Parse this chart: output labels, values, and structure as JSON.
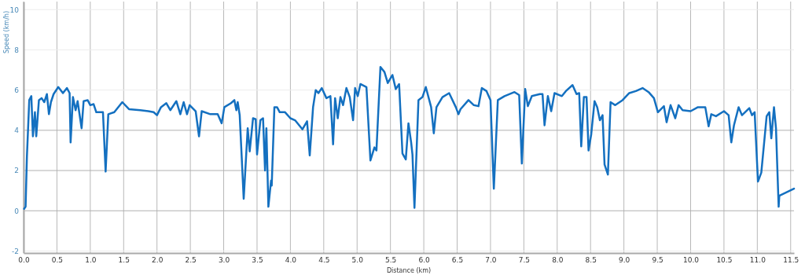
{
  "chart_data": {
    "type": "line",
    "xlabel": "Distance (km)",
    "ylabel": "Speed (km/h)",
    "xlim": [
      0,
      11.55
    ],
    "ylim": [
      -2.1,
      10.4
    ],
    "xticks": [
      {
        "value": 0,
        "label": "0.0"
      },
      {
        "value": 0.5,
        "label": "0.5"
      },
      {
        "value": 1,
        "label": "1.0"
      },
      {
        "value": 1.5,
        "label": "1.5"
      },
      {
        "value": 2,
        "label": "2.0"
      },
      {
        "value": 2.5,
        "label": "2.5"
      },
      {
        "value": 3,
        "label": "3.0"
      },
      {
        "value": 3.5,
        "label": "3.5"
      },
      {
        "value": 4,
        "label": "4.0"
      },
      {
        "value": 4.5,
        "label": "4.5"
      },
      {
        "value": 5,
        "label": "5.0"
      },
      {
        "value": 5.5,
        "label": "5.5"
      },
      {
        "value": 6,
        "label": "6.0"
      },
      {
        "value": 6.5,
        "label": "6.5"
      },
      {
        "value": 7,
        "label": "7.0"
      },
      {
        "value": 7.5,
        "label": "7.5"
      },
      {
        "value": 8,
        "label": "8.0"
      },
      {
        "value": 8.5,
        "label": "8.5"
      },
      {
        "value": 9,
        "label": "9.0"
      },
      {
        "value": 9.5,
        "label": "9.5"
      },
      {
        "value": 10,
        "label": "10.0"
      },
      {
        "value": 10.5,
        "label": "10.5"
      },
      {
        "value": 11,
        "label": "11.0"
      },
      {
        "value": 11.5,
        "label": "11.5"
      }
    ],
    "yticks": [
      -2,
      0,
      2,
      4,
      6,
      8,
      10
    ],
    "grid": true,
    "line_style": "solid",
    "marker": "none",
    "series": [
      {
        "color": "#1470c0",
        "x": [
          0.008,
          0.03,
          0.05,
          0.085,
          0.116,
          0.14,
          0.17,
          0.19,
          0.23,
          0.27,
          0.31,
          0.35,
          0.38,
          0.41,
          0.45,
          0.52,
          0.59,
          0.65,
          0.69,
          0.705,
          0.74,
          0.78,
          0.81,
          0.87,
          0.9,
          0.96,
          1.0,
          1.05,
          1.09,
          1.19,
          1.23,
          1.27,
          1.36,
          1.48,
          1.58,
          1.75,
          1.87,
          1.95,
          2.0,
          2.06,
          2.14,
          2.2,
          2.29,
          2.35,
          2.4,
          2.45,
          2.49,
          2.58,
          2.63,
          2.67,
          2.8,
          2.91,
          2.97,
          3.01,
          3.11,
          3.16,
          3.19,
          3.21,
          3.24,
          3.3,
          3.36,
          3.39,
          3.44,
          3.48,
          3.5,
          3.55,
          3.59,
          3.62,
          3.64,
          3.67,
          3.71,
          3.72,
          3.76,
          3.8,
          3.84,
          3.92,
          4.0,
          4.07,
          4.18,
          4.25,
          4.29,
          4.34,
          4.38,
          4.42,
          4.47,
          4.54,
          4.6,
          4.64,
          4.67,
          4.71,
          4.75,
          4.79,
          4.84,
          4.89,
          4.94,
          4.97,
          5.01,
          5.05,
          5.14,
          5.2,
          5.26,
          5.29,
          5.35,
          5.41,
          5.46,
          5.53,
          5.58,
          5.63,
          5.68,
          5.73,
          5.77,
          5.81,
          5.83,
          5.86,
          5.92,
          5.98,
          6.03,
          6.11,
          6.15,
          6.19,
          6.28,
          6.38,
          6.48,
          6.52,
          6.55,
          6.67,
          6.75,
          6.82,
          6.87,
          6.94,
          7.0,
          7.05,
          7.11,
          7.21,
          7.36,
          7.43,
          7.47,
          7.52,
          7.56,
          7.62,
          7.74,
          7.78,
          7.81,
          7.86,
          7.91,
          7.96,
          8.07,
          8.13,
          8.23,
          8.29,
          8.33,
          8.36,
          8.4,
          8.44,
          8.47,
          8.51,
          8.56,
          8.6,
          8.64,
          8.68,
          8.71,
          8.76,
          8.8,
          8.87,
          8.98,
          9.08,
          9.18,
          9.28,
          9.37,
          9.45,
          9.51,
          9.6,
          9.64,
          9.7,
          9.77,
          9.82,
          9.88,
          10.0,
          10.11,
          10.22,
          10.27,
          10.31,
          10.38,
          10.5,
          10.57,
          10.61,
          10.65,
          10.72,
          10.77,
          10.88,
          10.92,
          10.96,
          11.01,
          11.06,
          11.14,
          11.18,
          11.21,
          11.25,
          11.28,
          11.32,
          11.33,
          11.55
        ],
        "values": [
          0.1,
          0.2,
          2.7,
          5.5,
          5.7,
          3.7,
          4.9,
          3.7,
          5.5,
          5.6,
          5.4,
          5.8,
          4.8,
          5.4,
          5.8,
          6.15,
          5.85,
          6.1,
          5.85,
          3.4,
          5.65,
          5.0,
          5.45,
          4.1,
          5.45,
          5.5,
          5.25,
          5.3,
          4.9,
          4.9,
          1.95,
          4.8,
          4.9,
          5.4,
          5.05,
          5.0,
          4.95,
          4.9,
          4.75,
          5.15,
          5.35,
          5.0,
          5.45,
          4.8,
          5.4,
          4.8,
          5.25,
          4.95,
          3.7,
          4.95,
          4.8,
          4.8,
          4.35,
          5.15,
          5.35,
          5.5,
          5.0,
          5.4,
          4.75,
          0.6,
          4.1,
          2.95,
          4.6,
          4.55,
          2.8,
          4.5,
          4.6,
          2.0,
          4.1,
          0.2,
          1.5,
          1.25,
          5.15,
          5.15,
          4.9,
          4.9,
          4.6,
          4.5,
          4.05,
          4.45,
          2.75,
          5.15,
          6.0,
          5.85,
          6.1,
          5.6,
          5.7,
          3.3,
          5.6,
          4.6,
          5.65,
          5.25,
          6.1,
          5.65,
          4.5,
          6.1,
          5.7,
          6.3,
          6.15,
          2.5,
          3.15,
          3.0,
          7.15,
          6.9,
          6.35,
          6.75,
          6.05,
          6.3,
          2.85,
          2.55,
          4.35,
          3.4,
          2.8,
          0.15,
          5.5,
          5.65,
          6.15,
          5.15,
          3.85,
          5.15,
          5.65,
          5.85,
          5.15,
          4.8,
          5.05,
          5.5,
          5.25,
          5.2,
          6.1,
          5.95,
          5.5,
          1.1,
          5.5,
          5.7,
          5.9,
          5.75,
          2.35,
          6.05,
          5.2,
          5.7,
          5.8,
          5.8,
          4.25,
          5.7,
          4.95,
          5.85,
          5.7,
          5.95,
          6.25,
          5.8,
          5.85,
          3.2,
          5.65,
          5.65,
          3.0,
          3.8,
          5.45,
          5.15,
          4.5,
          4.75,
          2.3,
          1.8,
          5.4,
          5.25,
          5.5,
          5.85,
          5.95,
          6.1,
          5.9,
          5.6,
          4.9,
          5.2,
          4.4,
          5.25,
          4.6,
          5.25,
          5.0,
          4.95,
          5.15,
          5.15,
          4.2,
          4.8,
          4.7,
          4.95,
          4.75,
          3.4,
          4.25,
          5.15,
          4.75,
          5.1,
          4.75,
          4.9,
          1.45,
          1.9,
          4.7,
          4.9,
          3.6,
          5.15,
          4.1,
          0.2,
          0.75,
          1.1
        ]
      }
    ]
  }
}
